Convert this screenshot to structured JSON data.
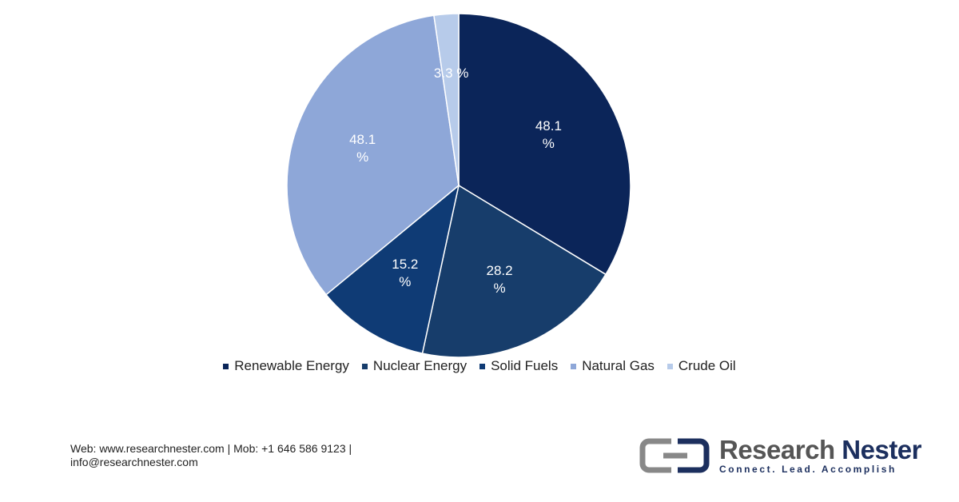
{
  "chart_data": {
    "type": "pie",
    "categories": [
      "Renewable Energy",
      "Nuclear Energy",
      "Solid Fuels",
      "Natural Gas",
      "Crude Oil"
    ],
    "values": [
      48.1,
      28.2,
      15.2,
      48.1,
      3.3
    ],
    "value_labels": [
      "48.1 %",
      "28.2 %",
      "15.2 %",
      "48.1 %",
      "3.3 %"
    ],
    "colors": [
      "#0b2559",
      "#173d6b",
      "#0f3b75",
      "#8ea7d8",
      "#b7cbea"
    ],
    "legend": "bottom"
  },
  "footer": {
    "contact": "Web: www.researchnester.com | Mob: +1 646 586 9123 | info@researchnester.com",
    "brand": "Research",
    "brand_bold": "Nester",
    "tagline": "Connect. Lead. Accomplish"
  }
}
